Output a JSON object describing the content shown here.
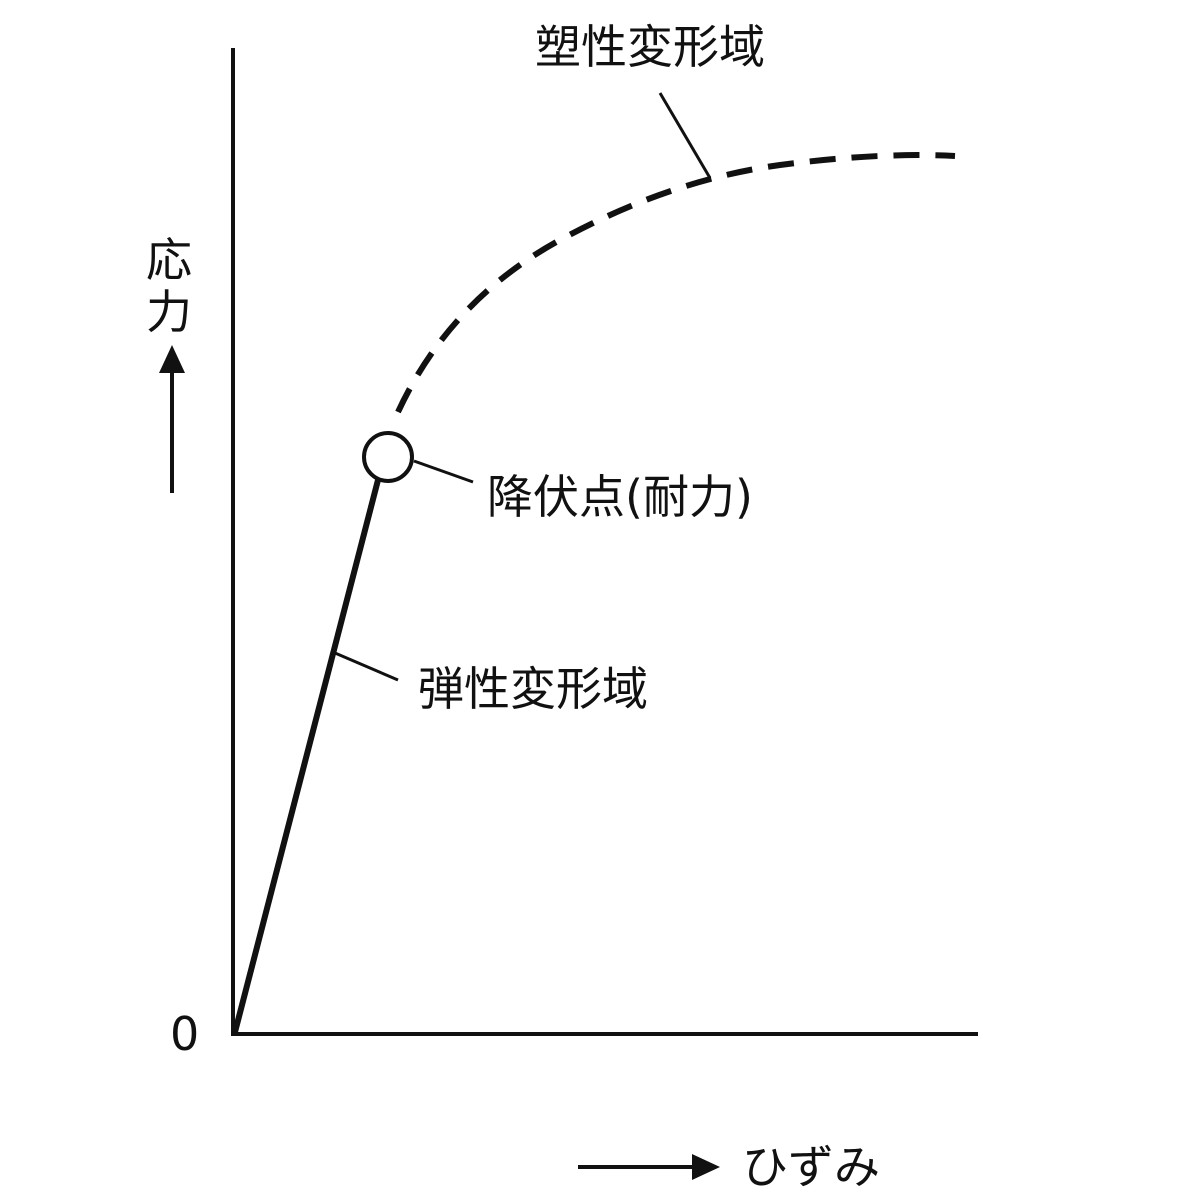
{
  "diagram": {
    "plastic_region_label": "塑性変形域",
    "elastic_region_label": "弾性変形域",
    "yield_point_label": "降伏点(耐力)",
    "y_axis_label_line1": "応",
    "y_axis_label_line2": "力",
    "x_axis_label": "ひずみ",
    "origin_label": "0"
  }
}
